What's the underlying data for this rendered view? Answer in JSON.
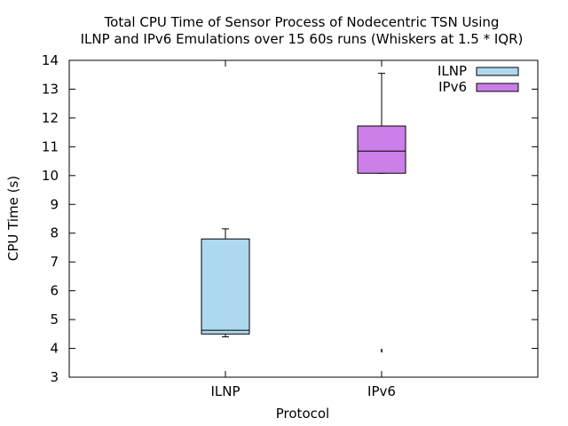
{
  "chart_data": {
    "type": "box",
    "title_line1": "Total CPU Time of Sensor Process of Nodecentric TSN Using",
    "title_line2": "ILNP and IPv6 Emulations over 15 60s runs (Whiskers at 1.5 * IQR)",
    "xlabel": "Protocol",
    "ylabel": "CPU Time (s)",
    "ylim": [
      3,
      14
    ],
    "yticks": [
      3,
      4,
      5,
      6,
      7,
      8,
      9,
      10,
      11,
      12,
      13,
      14
    ],
    "categories": [
      "ILNP",
      "IPv6"
    ],
    "legend_position": "top-right",
    "grid": false,
    "series": [
      {
        "name": "ILNP",
        "color": "#add8f0",
        "whisker_low": 4.4,
        "q1": 4.5,
        "median": 4.63,
        "q3": 7.8,
        "whisker_high": 8.15,
        "outliers": []
      },
      {
        "name": "IPv6",
        "color": "#cc7fe8",
        "whisker_low": 10.08,
        "q1": 10.08,
        "median": 10.85,
        "q3": 11.72,
        "whisker_high": 13.55,
        "outliers": [
          3.89,
          3.95
        ]
      }
    ]
  }
}
